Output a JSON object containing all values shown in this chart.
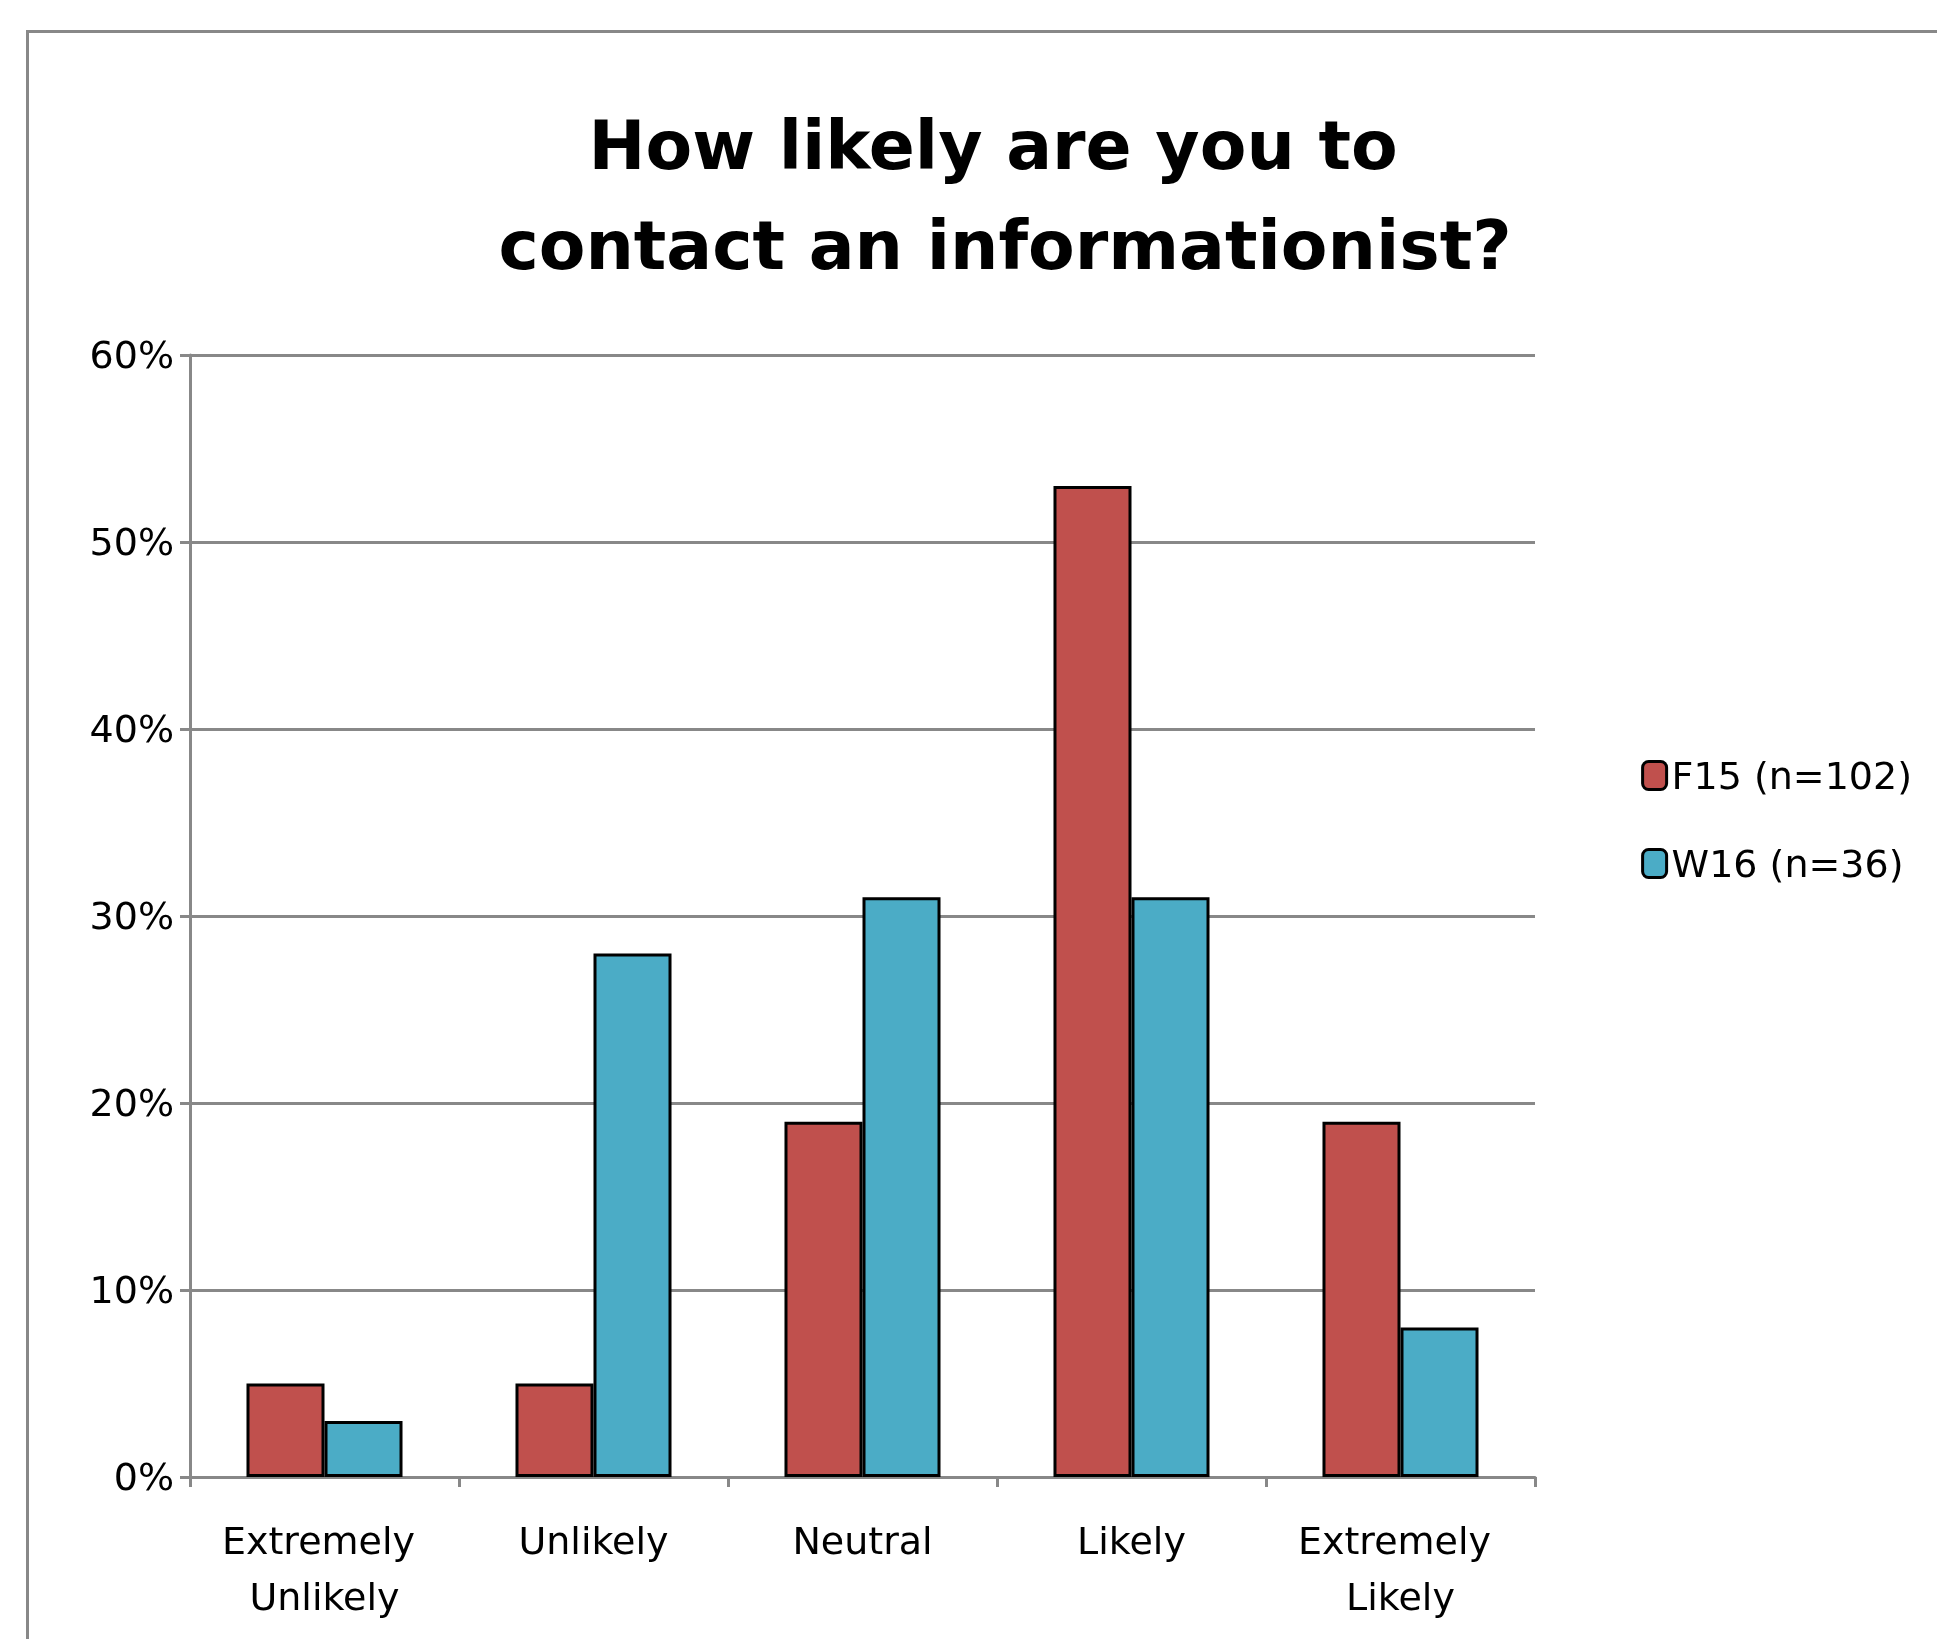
{
  "chart_data": {
    "type": "bar",
    "title": "How likely are you to contact an informationist?",
    "categories": [
      "Extremely Unlikely",
      "Unlikely",
      "Neutral",
      "Likely",
      "Extremely Likely"
    ],
    "series": [
      {
        "name": "F15 (n=102)",
        "color": "#c0504d",
        "values": [
          5,
          5,
          19,
          53,
          19
        ]
      },
      {
        "name": "W16 (n=36)",
        "color": "#4bacc6",
        "values": [
          3,
          28,
          31,
          31,
          8
        ]
      }
    ],
    "ylim": [
      0,
      60
    ],
    "yticks": [
      {
        "value": 0,
        "label": "0%"
      },
      {
        "value": 10,
        "label": "10%"
      },
      {
        "value": 20,
        "label": "20%"
      },
      {
        "value": 30,
        "label": "30%"
      },
      {
        "value": 40,
        "label": "40%"
      },
      {
        "value": 50,
        "label": "50%"
      },
      {
        "value": 60,
        "label": "60%"
      }
    ],
    "grid": "y",
    "legend": "right"
  }
}
